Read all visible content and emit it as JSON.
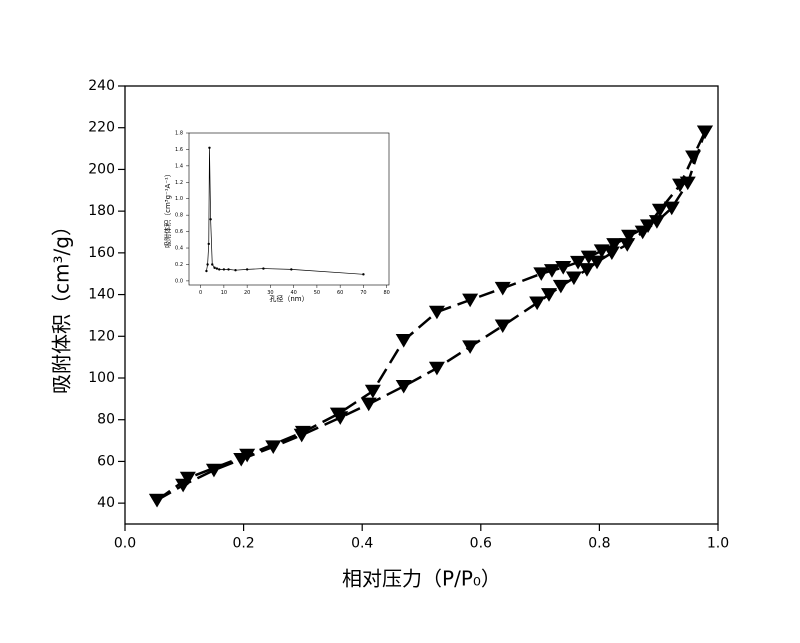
{
  "chart_data": [
    {
      "type": "line",
      "x_label": "相对压力（P/P₀）",
      "y_label": "吸附体积（cm³/g）",
      "xlim": [
        0,
        1
      ],
      "ylim": [
        30,
        240
      ],
      "xticks": [
        {
          "value": 0,
          "label": "0.0"
        },
        0.2,
        0.4,
        0.6,
        0.8,
        {
          "value": 1,
          "label": "1.0"
        }
      ],
      "yticks": [
        40,
        60,
        80,
        100,
        120,
        140,
        160,
        180,
        200,
        220,
        240
      ],
      "marker": "triangle-down",
      "linestyle": "dashed",
      "series": [
        {
          "color": "#000000",
          "x": [
            0.054,
            0.098,
            0.15,
            0.196,
            0.25,
            0.298,
            0.363,
            0.411,
            0.47,
            0.526,
            0.582,
            0.637,
            0.695,
            0.715,
            0.735,
            0.757,
            0.779,
            0.796,
            0.821,
            0.847,
            0.873,
            0.897,
            0.922,
            0.949,
            0.978
          ],
          "values": [
            41.4,
            48.6,
            55.8,
            61,
            67,
            72.6,
            81,
            87.5,
            96,
            104.7,
            115,
            125,
            136,
            140,
            144,
            148,
            152,
            155.6,
            160,
            164,
            170,
            175,
            181.5,
            193.5,
            218
          ]
        },
        {
          "color": "#000000",
          "x": [
            0.054,
            0.106,
            0.206,
            0.3,
            0.359,
            0.418,
            0.47,
            0.526,
            0.582,
            0.637,
            0.702,
            0.72,
            0.739,
            0.764,
            0.782,
            0.804,
            0.825,
            0.85,
            0.882,
            0.902,
            0.936,
            0.958,
            0.978
          ],
          "values": [
            41.4,
            52,
            63,
            74,
            82.7,
            93.7,
            118,
            131.6,
            137.4,
            143,
            150,
            151.5,
            153,
            155.5,
            158,
            161,
            164,
            168,
            173,
            180.5,
            192.5,
            206,
            218
          ]
        }
      ]
    },
    {
      "type": "line",
      "x_label": "孔径（nm）",
      "y_label": "吸附体积（cm³g⁻¹A⁻¹）",
      "xlim": [
        -5,
        81
      ],
      "ylim": [
        -0.05,
        1.8
      ],
      "xticks": [
        0,
        10,
        20,
        30,
        40,
        50,
        60,
        70,
        80
      ],
      "yticks": [
        {
          "value": 0,
          "label": "0.0"
        },
        0.2,
        0.4,
        0.6,
        0.8,
        {
          "value": 1,
          "label": "1.0"
        },
        1.2,
        1.4,
        1.6,
        1.8
      ],
      "marker": "dot",
      "linestyle": "solid",
      "series": [
        {
          "color": "#000000",
          "x": [
            2.5,
            3,
            3.5,
            3.8,
            4.3,
            5,
            6,
            7,
            8,
            10,
            12,
            15,
            20,
            27,
            39,
            70
          ],
          "values": [
            0.12,
            0.2,
            0.45,
            1.62,
            0.75,
            0.2,
            0.16,
            0.15,
            0.14,
            0.14,
            0.14,
            0.13,
            0.14,
            0.15,
            0.14,
            0.08
          ]
        }
      ]
    }
  ]
}
